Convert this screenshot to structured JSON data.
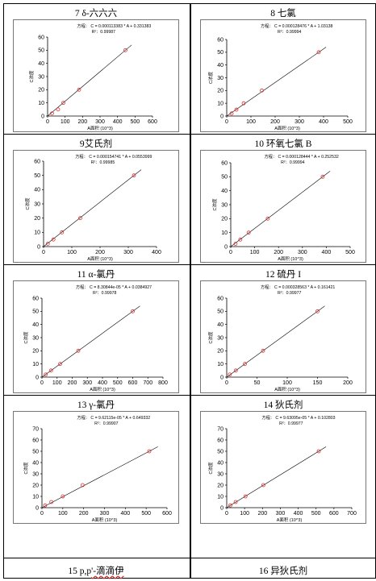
{
  "charts": [
    {
      "title": "7 δ-六六六",
      "equation": "方程： C = 0.000113383 * A + 0.331383",
      "r2": "R²：0.99987",
      "chart_data": {
        "type": "scatter",
        "x": [
          25,
          60,
          90,
          180,
          445
        ],
        "y": [
          2,
          5,
          10,
          20,
          50
        ],
        "fit": {
          "slope": 0.000113383,
          "intercept": 0.331383
        },
        "xlim": [
          0,
          600
        ],
        "ylim": [
          0,
          60
        ],
        "xticks": [
          0,
          100,
          200,
          300,
          400,
          500,
          600
        ],
        "yticks": [
          0,
          10,
          20,
          30,
          40,
          50,
          60
        ],
        "xlabel": "A面积 (10^3)",
        "ylabel": "C浓度"
      }
    },
    {
      "title": "8 七氯",
      "equation": "方程： C = 0.000128476 * A + 1.03138",
      "r2": "R²：0.99994",
      "chart_data": {
        "type": "scatter",
        "x": [
          20,
          40,
          70,
          145,
          380
        ],
        "y": [
          2,
          5,
          10,
          20,
          50
        ],
        "fit": {
          "slope": 0.000128476,
          "intercept": 1.03138
        },
        "xlim": [
          0,
          500
        ],
        "ylim": [
          0,
          60
        ],
        "xticks": [
          0,
          100,
          200,
          300,
          400,
          500
        ],
        "yticks": [
          0,
          10,
          20,
          30,
          40,
          50,
          60
        ],
        "xlabel": "A面积 (10^3)",
        "ylabel": "C浓度"
      }
    },
    {
      "title": "9艾氏剂",
      "equation": "方程： C = 0.000154741 * A + 0.0553999",
      "r2": "R²：0.99985",
      "chart_data": {
        "type": "scatter",
        "x": [
          15,
          35,
          65,
          130,
          320
        ],
        "y": [
          2,
          5,
          10,
          20,
          50
        ],
        "fit": {
          "slope": 0.000154741,
          "intercept": 0.0553999
        },
        "xlim": [
          0,
          400
        ],
        "ylim": [
          0,
          60
        ],
        "xticks": [
          0,
          100,
          200,
          300,
          400
        ],
        "yticks": [
          0,
          10,
          20,
          30,
          40,
          50,
          60
        ],
        "xlabel": "A面积 (10^3)",
        "ylabel": "C浓度"
      }
    },
    {
      "title": "10 环氧七氯 B",
      "equation": "方程： C = 0.000128444 * A + 0.252532",
      "r2": "R²：0.99994",
      "chart_data": {
        "type": "scatter",
        "x": [
          20,
          40,
          75,
          155,
          385
        ],
        "y": [
          2,
          5,
          10,
          20,
          50
        ],
        "fit": {
          "slope": 0.000128444,
          "intercept": 0.252532
        },
        "xlim": [
          0,
          500
        ],
        "ylim": [
          0,
          60
        ],
        "xticks": [
          0,
          100,
          200,
          300,
          400,
          500
        ],
        "yticks": [
          0,
          10,
          20,
          30,
          40,
          50,
          60
        ],
        "xlabel": "A面积 (10^3)",
        "ylabel": "C浓度"
      }
    },
    {
      "title": "11 α-氯丹",
      "equation": "方程： C = 8.30844e-05 * A + 0.0384927",
      "r2": "R²：0.99978",
      "chart_data": {
        "type": "scatter",
        "x": [
          25,
          60,
          120,
          240,
          600
        ],
        "y": [
          2,
          5,
          10,
          20,
          50
        ],
        "fit": {
          "slope": 8.30844e-05,
          "intercept": 0.0384927
        },
        "xlim": [
          0,
          800
        ],
        "ylim": [
          0,
          60
        ],
        "xticks": [
          0,
          100,
          200,
          300,
          400,
          500,
          600,
          700,
          800
        ],
        "yticks": [
          0,
          10,
          20,
          30,
          40,
          50,
          60
        ],
        "xlabel": "A面积 (10^3)",
        "ylabel": "C浓度"
      }
    },
    {
      "title": "12 硫丹 I",
      "equation": "方程： C = 0.000328563 * A + 0.161421",
      "r2": "R²：0.99977",
      "chart_data": {
        "type": "scatter",
        "x": [
          5,
          15,
          30,
          60,
          150
        ],
        "y": [
          2,
          5,
          10,
          20,
          50
        ],
        "fit": {
          "slope": 0.000328563,
          "intercept": 0.161421
        },
        "xlim": [
          0,
          200
        ],
        "ylim": [
          0,
          60
        ],
        "xticks": [
          0,
          50,
          100,
          150,
          200
        ],
        "yticks": [
          0,
          10,
          20,
          30,
          40,
          50,
          60
        ],
        "xlabel": "A面积 (10^3)",
        "ylabel": "C浓度"
      }
    },
    {
      "title": "13 γ-氯丹",
      "equation": "方程： C = 9.62115e-05 * A + 0.649332",
      "r2": "R²：0.99907",
      "chart_data": {
        "type": "scatter",
        "x": [
          15,
          45,
          100,
          195,
          515
        ],
        "y": [
          2,
          5,
          10,
          20,
          50
        ],
        "fit": {
          "slope": 9.62115e-05,
          "intercept": 0.649332
        },
        "xlim": [
          0,
          600
        ],
        "ylim": [
          0,
          70
        ],
        "xticks": [
          0,
          100,
          200,
          300,
          400,
          500,
          600
        ],
        "yticks": [
          0,
          10,
          20,
          30,
          40,
          50,
          60,
          70
        ],
        "xlabel": "A面积 (10^3)",
        "ylabel": "C浓度"
      }
    },
    {
      "title": "14 狄氏剂",
      "equation": "方程： C = 9.63095e-05 * A + 0.102803",
      "r2": "R²：0.99977",
      "chart_data": {
        "type": "scatter",
        "x": [
          20,
          50,
          105,
          205,
          515
        ],
        "y": [
          2,
          5,
          10,
          20,
          50
        ],
        "fit": {
          "slope": 9.63095e-05,
          "intercept": 0.102803
        },
        "xlim": [
          0,
          700
        ],
        "ylim": [
          0,
          70
        ],
        "xticks": [
          0,
          100,
          200,
          300,
          400,
          500,
          600,
          700
        ],
        "yticks": [
          0,
          10,
          20,
          30,
          40,
          50,
          60,
          70
        ],
        "xlabel": "A面积 (10^3)",
        "ylabel": "C浓度"
      }
    }
  ],
  "footer": {
    "left_pre": "15 p,p",
    "left_wavy": "'-滴滴伊",
    "right": "16 异狄氏剂"
  }
}
